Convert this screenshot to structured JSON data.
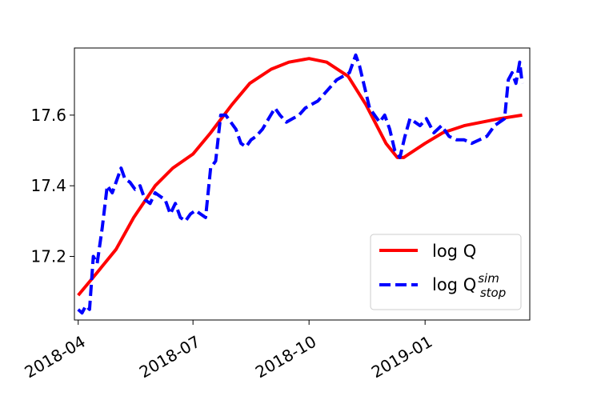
{
  "chart_data": {
    "type": "line",
    "x_axis_type": "date",
    "xlim": [
      "2018-03-29",
      "2019-03-25"
    ],
    "ylim": [
      17.02,
      17.79
    ],
    "x_ticks": [
      "2018-04-01",
      "2018-07-01",
      "2018-10-01",
      "2019-01-01"
    ],
    "x_tick_labels": [
      "2018-04",
      "2018-07",
      "2018-10",
      "2019-01"
    ],
    "y_ticks": [
      17.2,
      17.4,
      17.6
    ],
    "y_tick_labels": [
      "17.2",
      "17.4",
      "17.6"
    ],
    "grid": false,
    "legend_position": "lower-right",
    "series": [
      {
        "name": "log Q",
        "color": "#ff0000",
        "style": "solid",
        "x": [
          "2018-04-01",
          "2018-04-15",
          "2018-05-01",
          "2018-05-15",
          "2018-06-01",
          "2018-06-15",
          "2018-07-01",
          "2018-07-15",
          "2018-08-01",
          "2018-08-15",
          "2018-09-01",
          "2018-09-15",
          "2018-10-01",
          "2018-10-15",
          "2018-11-01",
          "2018-11-15",
          "2018-12-01",
          "2018-12-10",
          "2018-12-15",
          "2019-01-01",
          "2019-01-15",
          "2019-02-01",
          "2019-02-15",
          "2019-03-01",
          "2019-03-19"
        ],
        "y": [
          17.09,
          17.15,
          17.22,
          17.31,
          17.4,
          17.45,
          17.49,
          17.55,
          17.63,
          17.69,
          17.73,
          17.75,
          17.76,
          17.75,
          17.71,
          17.63,
          17.52,
          17.48,
          17.48,
          17.52,
          17.55,
          17.57,
          17.58,
          17.59,
          17.6
        ]
      },
      {
        "name": "log Q^sim_stop",
        "color": "#0000ff",
        "style": "dashed",
        "x": [
          "2018-04-01",
          "2018-04-04",
          "2018-04-07",
          "2018-04-10",
          "2018-04-13",
          "2018-04-16",
          "2018-04-20",
          "2018-04-24",
          "2018-04-28",
          "2018-05-01",
          "2018-05-05",
          "2018-05-08",
          "2018-05-12",
          "2018-05-16",
          "2018-05-20",
          "2018-05-24",
          "2018-05-28",
          "2018-06-01",
          "2018-06-05",
          "2018-06-09",
          "2018-06-13",
          "2018-06-17",
          "2018-06-21",
          "2018-06-25",
          "2018-06-29",
          "2018-07-03",
          "2018-07-07",
          "2018-07-11",
          "2018-07-15",
          "2018-07-19",
          "2018-07-23",
          "2018-07-27",
          "2018-07-31",
          "2018-08-04",
          "2018-08-08",
          "2018-08-12",
          "2018-08-16",
          "2018-08-20",
          "2018-08-25",
          "2018-08-30",
          "2018-09-04",
          "2018-09-08",
          "2018-09-13",
          "2018-09-18",
          "2018-09-23",
          "2018-09-28",
          "2018-10-03",
          "2018-10-08",
          "2018-10-13",
          "2018-10-18",
          "2018-10-23",
          "2018-10-28",
          "2018-11-02",
          "2018-11-07",
          "2018-11-10",
          "2018-11-14",
          "2018-11-18",
          "2018-11-22",
          "2018-11-26",
          "2018-11-30",
          "2018-12-04",
          "2018-12-08",
          "2018-12-12",
          "2018-12-16",
          "2018-12-20",
          "2018-12-24",
          "2018-12-28",
          "2019-01-02",
          "2019-01-08",
          "2019-01-14",
          "2019-01-20",
          "2019-01-26",
          "2019-02-01",
          "2019-02-07",
          "2019-02-13",
          "2019-02-19",
          "2019-02-25",
          "2019-03-01",
          "2019-03-05",
          "2019-03-08",
          "2019-03-11",
          "2019-03-14",
          "2019-03-17",
          "2019-03-19"
        ],
        "y": [
          17.05,
          17.04,
          17.06,
          17.05,
          17.2,
          17.18,
          17.28,
          17.4,
          17.38,
          17.41,
          17.45,
          17.42,
          17.41,
          17.39,
          17.4,
          17.36,
          17.35,
          17.38,
          17.37,
          17.36,
          17.32,
          17.35,
          17.31,
          17.3,
          17.32,
          17.33,
          17.32,
          17.31,
          17.45,
          17.47,
          17.6,
          17.6,
          17.58,
          17.56,
          17.52,
          17.51,
          17.53,
          17.54,
          17.56,
          17.59,
          17.62,
          17.6,
          17.58,
          17.59,
          17.6,
          17.62,
          17.63,
          17.64,
          17.66,
          17.68,
          17.7,
          17.71,
          17.72,
          17.77,
          17.74,
          17.68,
          17.62,
          17.6,
          17.58,
          17.6,
          17.56,
          17.5,
          17.48,
          17.54,
          17.59,
          17.58,
          17.57,
          17.59,
          17.55,
          17.57,
          17.54,
          17.53,
          17.53,
          17.52,
          17.53,
          17.54,
          17.57,
          17.58,
          17.59,
          17.7,
          17.72,
          17.69,
          17.75,
          17.69
        ]
      }
    ]
  },
  "legend": {
    "items": [
      {
        "label": "log Q",
        "color": "#ff0000",
        "style": "solid"
      },
      {
        "label_base": "log Q",
        "label_sup": "sim",
        "label_sub": "stop",
        "color": "#0000ff",
        "style": "dashed"
      }
    ]
  }
}
